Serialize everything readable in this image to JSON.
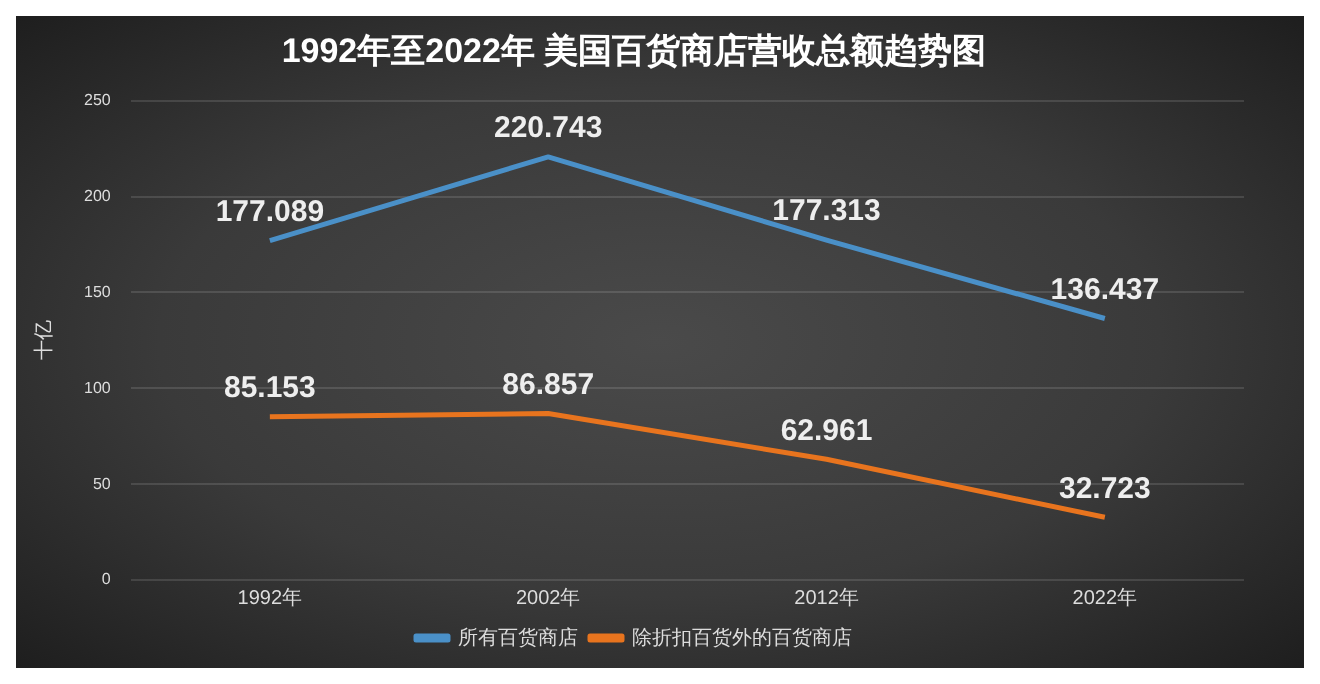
{
  "chart_data": {
    "type": "line",
    "title": "1992年至2022年 美国百货商店营收总额趋势图",
    "ylabel": "十亿",
    "categories": [
      "1992年",
      "2002年",
      "2012年",
      "2022年"
    ],
    "series": [
      {
        "name": "所有百货商店",
        "color": "#4a90c8",
        "values": [
          177.089,
          220.743,
          177.313,
          136.437
        ]
      },
      {
        "name": "除折扣百货外的百货商店",
        "color": "#e8741e",
        "values": [
          85.153,
          86.857,
          62.961,
          32.723
        ]
      }
    ],
    "ylim": [
      0,
      250
    ],
    "yticks": [
      0,
      50,
      100,
      150,
      200,
      250
    ],
    "grid": "y",
    "legend": "bottom",
    "data_labels": true,
    "marker": "none",
    "line_style": "solid"
  }
}
